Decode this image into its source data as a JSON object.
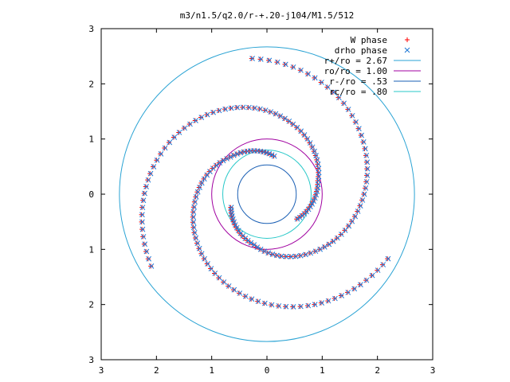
{
  "chart_data": {
    "type": "scatter",
    "title": "m3/n1.5/q2.0/r-+.20-j104/M1.5/512",
    "xlim": [
      -3,
      3
    ],
    "ylim": [
      -3,
      3
    ],
    "x_tick_labels": [
      "3",
      "2",
      "1",
      "0",
      "1",
      "2",
      "3"
    ],
    "y_tick_labels": [
      "3",
      "2",
      "1",
      "0",
      "1",
      "2",
      "3"
    ],
    "legend_position": "top-right",
    "colors": {
      "w_phase": "#ff0000",
      "drho_phase": "#1e78d6",
      "r_plus": "#2aa3d4",
      "r_o": "#a000a0",
      "r_minus": "#1a5fb4",
      "r_c": "#28c8c8"
    },
    "series": [
      {
        "name": "W phase",
        "key": "w_phase",
        "marker": "plus",
        "spiral_arms": [
          {
            "theta_deg": [
              200,
              255,
              310,
              360,
              410,
              460
            ],
            "r": [
              0.7,
              0.95,
              1.35,
              1.75,
              2.15,
              2.5
            ]
          },
          {
            "theta_deg": [
              320,
              375,
              430,
              480,
              530,
              575
            ],
            "r": [
              0.7,
              0.95,
              1.35,
              1.75,
              2.15,
              2.5
            ]
          },
          {
            "theta_deg": [
              80,
              135,
              190,
              240,
              290,
              335
            ],
            "r": [
              0.7,
              0.95,
              1.35,
              1.75,
              2.15,
              2.5
            ]
          }
        ]
      },
      {
        "name": "drho phase",
        "key": "drho_phase",
        "marker": "cross",
        "spiral_arms": [
          {
            "theta_deg": [
              200,
              255,
              310,
              360,
              410,
              460
            ],
            "r": [
              0.7,
              0.95,
              1.35,
              1.75,
              2.15,
              2.5
            ]
          },
          {
            "theta_deg": [
              320,
              375,
              430,
              480,
              530,
              575
            ],
            "r": [
              0.7,
              0.95,
              1.35,
              1.75,
              2.15,
              2.5
            ]
          },
          {
            "theta_deg": [
              80,
              135,
              190,
              240,
              290,
              335
            ],
            "r": [
              0.7,
              0.95,
              1.35,
              1.75,
              2.15,
              2.5
            ]
          }
        ]
      }
    ],
    "circles": [
      {
        "label": "r+/ro = 2.67",
        "key": "r_plus",
        "r": 2.67
      },
      {
        "label": "ro/ro = 1.00",
        "key": "r_o",
        "r": 1.0
      },
      {
        "label": "r-/ro = .53",
        "key": "r_minus",
        "r": 0.53
      },
      {
        "label": "rc/ro = .80",
        "key": "r_c",
        "r": 0.8
      }
    ]
  }
}
